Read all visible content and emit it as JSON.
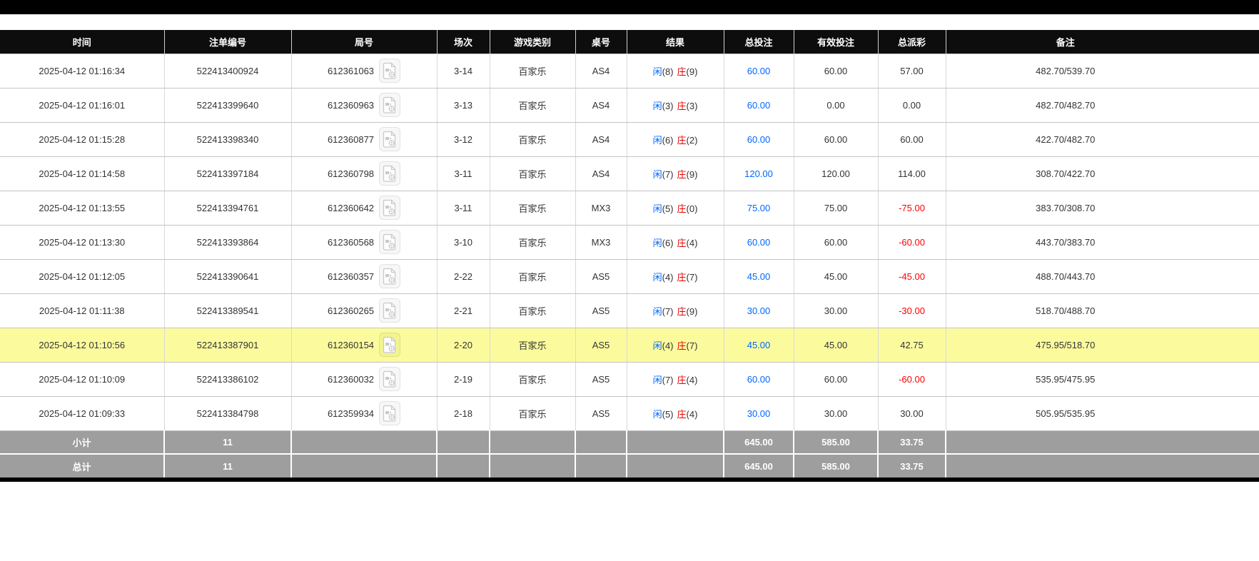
{
  "colors": {
    "accent_blue": "#0066ff",
    "negative_red": "#ff0000",
    "player_blue": "#0066ff",
    "banker_red": "#e60000",
    "highlight_yellow": "#fbfb9e",
    "footer_gray": "#9e9e9e",
    "header_black": "#0d0d0d"
  },
  "icons": {
    "round_video": "film-document-icon"
  },
  "table": {
    "columns": [
      "时间",
      "注单编号",
      "局号",
      "场次",
      "游戏类别",
      "桌号",
      "结果",
      "总投注",
      "有效投注",
      "总派彩",
      "备注"
    ],
    "result_labels": {
      "player": "闲",
      "banker": "庄"
    },
    "rows": [
      {
        "time": "2025-04-12 01:16:34",
        "bet_id": "522413400924",
        "round_id": "612361063",
        "session": "3-14",
        "game": "百家乐",
        "table_id": "AS4",
        "result": {
          "player": "8",
          "banker": "9"
        },
        "total_bet": "60.00",
        "valid_bet": "60.00",
        "payout": "57.00",
        "remark": "482.70/539.70",
        "highlighted": false
      },
      {
        "time": "2025-04-12 01:16:01",
        "bet_id": "522413399640",
        "round_id": "612360963",
        "session": "3-13",
        "game": "百家乐",
        "table_id": "AS4",
        "result": {
          "player": "3",
          "banker": "3"
        },
        "total_bet": "60.00",
        "valid_bet": "0.00",
        "payout": "0.00",
        "remark": "482.70/482.70",
        "highlighted": false
      },
      {
        "time": "2025-04-12 01:15:28",
        "bet_id": "522413398340",
        "round_id": "612360877",
        "session": "3-12",
        "game": "百家乐",
        "table_id": "AS4",
        "result": {
          "player": "6",
          "banker": "2"
        },
        "total_bet": "60.00",
        "valid_bet": "60.00",
        "payout": "60.00",
        "remark": "422.70/482.70",
        "highlighted": false
      },
      {
        "time": "2025-04-12 01:14:58",
        "bet_id": "522413397184",
        "round_id": "612360798",
        "session": "3-11",
        "game": "百家乐",
        "table_id": "AS4",
        "result": {
          "player": "7",
          "banker": "9"
        },
        "total_bet": "120.00",
        "valid_bet": "120.00",
        "payout": "114.00",
        "remark": "308.70/422.70",
        "highlighted": false
      },
      {
        "time": "2025-04-12 01:13:55",
        "bet_id": "522413394761",
        "round_id": "612360642",
        "session": "3-11",
        "game": "百家乐",
        "table_id": "MX3",
        "result": {
          "player": "5",
          "banker": "0"
        },
        "total_bet": "75.00",
        "valid_bet": "75.00",
        "payout": "-75.00",
        "remark": "383.70/308.70",
        "highlighted": false
      },
      {
        "time": "2025-04-12 01:13:30",
        "bet_id": "522413393864",
        "round_id": "612360568",
        "session": "3-10",
        "game": "百家乐",
        "table_id": "MX3",
        "result": {
          "player": "6",
          "banker": "4"
        },
        "total_bet": "60.00",
        "valid_bet": "60.00",
        "payout": "-60.00",
        "remark": "443.70/383.70",
        "highlighted": false
      },
      {
        "time": "2025-04-12 01:12:05",
        "bet_id": "522413390641",
        "round_id": "612360357",
        "session": "2-22",
        "game": "百家乐",
        "table_id": "AS5",
        "result": {
          "player": "4",
          "banker": "7"
        },
        "total_bet": "45.00",
        "valid_bet": "45.00",
        "payout": "-45.00",
        "remark": "488.70/443.70",
        "highlighted": false
      },
      {
        "time": "2025-04-12 01:11:38",
        "bet_id": "522413389541",
        "round_id": "612360265",
        "session": "2-21",
        "game": "百家乐",
        "table_id": "AS5",
        "result": {
          "player": "7",
          "banker": "9"
        },
        "total_bet": "30.00",
        "valid_bet": "30.00",
        "payout": "-30.00",
        "remark": "518.70/488.70",
        "highlighted": false
      },
      {
        "time": "2025-04-12 01:10:56",
        "bet_id": "522413387901",
        "round_id": "612360154",
        "session": "2-20",
        "game": "百家乐",
        "table_id": "AS5",
        "result": {
          "player": "4",
          "banker": "7"
        },
        "total_bet": "45.00",
        "valid_bet": "45.00",
        "payout": "42.75",
        "remark": "475.95/518.70",
        "highlighted": true
      },
      {
        "time": "2025-04-12 01:10:09",
        "bet_id": "522413386102",
        "round_id": "612360032",
        "session": "2-19",
        "game": "百家乐",
        "table_id": "AS5",
        "result": {
          "player": "7",
          "banker": "4"
        },
        "total_bet": "60.00",
        "valid_bet": "60.00",
        "payout": "-60.00",
        "remark": "535.95/475.95",
        "highlighted": false
      },
      {
        "time": "2025-04-12 01:09:33",
        "bet_id": "522413384798",
        "round_id": "612359934",
        "session": "2-18",
        "game": "百家乐",
        "table_id": "AS5",
        "result": {
          "player": "5",
          "banker": "4"
        },
        "total_bet": "30.00",
        "valid_bet": "30.00",
        "payout": "30.00",
        "remark": "505.95/535.95",
        "highlighted": false
      }
    ],
    "footer": [
      {
        "label": "小计",
        "count": "11",
        "total_bet": "645.00",
        "valid_bet": "585.00",
        "payout": "33.75"
      },
      {
        "label": "总计",
        "count": "11",
        "total_bet": "645.00",
        "valid_bet": "585.00",
        "payout": "33.75"
      }
    ]
  }
}
